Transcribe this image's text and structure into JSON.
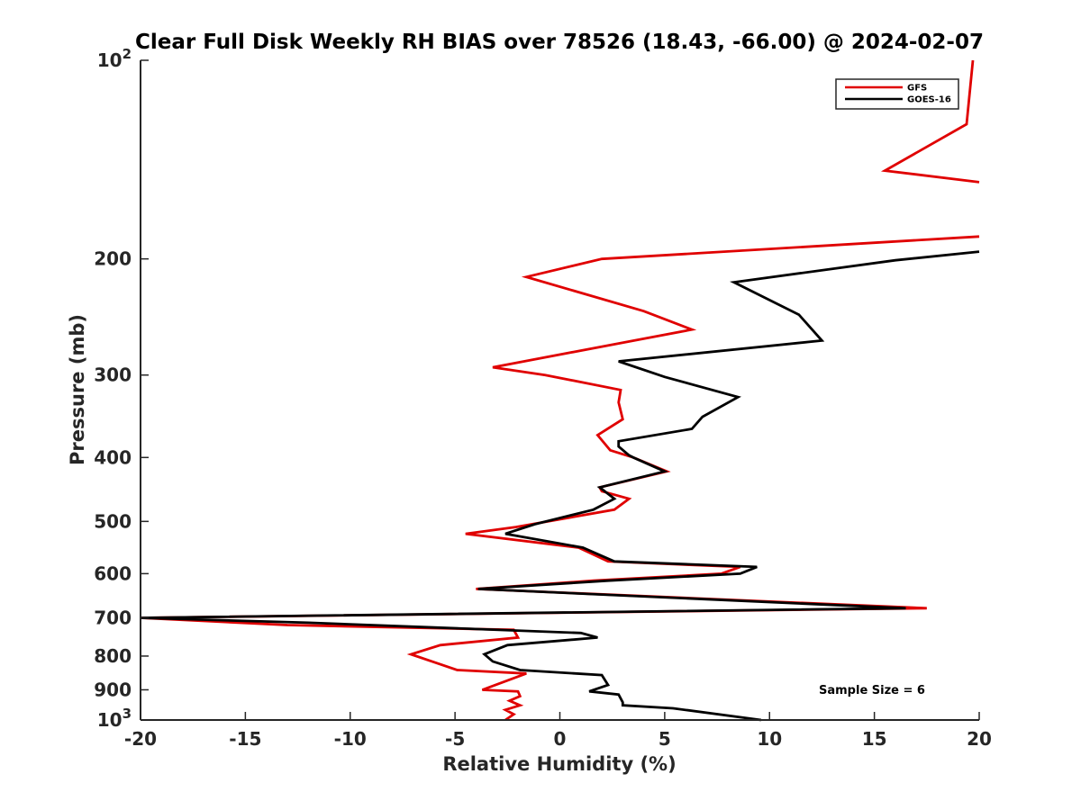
{
  "chart_data": {
    "type": "line",
    "title": "Clear Full Disk Weekly RH BIAS over 78526 (18.43, -66.00) @ 2024-02-07",
    "xlabel": "Relative Humidity (%)",
    "ylabel": "Pressure (mb)",
    "xlim": [
      -20,
      20
    ],
    "ylim": [
      100,
      1000
    ],
    "yscale": "log",
    "y_reversed": true,
    "x_ticks": [
      -20,
      -15,
      -10,
      -5,
      0,
      5,
      10,
      15,
      20
    ],
    "x_tick_labels": [
      "-20",
      "-15",
      "-10",
      "-5",
      "0",
      "5",
      "10",
      "15",
      "20"
    ],
    "y_ticks": [
      100,
      200,
      300,
      400,
      500,
      600,
      700,
      800,
      900,
      1000
    ],
    "y_tick_labels": [
      {
        "base": "10",
        "sup": "2"
      },
      {
        "base": "200",
        "sup": ""
      },
      {
        "base": "300",
        "sup": ""
      },
      {
        "base": "400",
        "sup": ""
      },
      {
        "base": "500",
        "sup": ""
      },
      {
        "base": "600",
        "sup": ""
      },
      {
        "base": "700",
        "sup": ""
      },
      {
        "base": "800",
        "sup": ""
      },
      {
        "base": "900",
        "sup": ""
      },
      {
        "base": "10",
        "sup": "3"
      }
    ],
    "legend_position": "top-right",
    "annotation": "Sample Size = 6",
    "series": [
      {
        "name": "GFS",
        "color": "#e00000",
        "points": [
          [
            19.7,
            100
          ],
          [
            19.4,
            125
          ],
          [
            15.5,
            147
          ],
          [
            20.0,
            153
          ],
          [
            null,
            null
          ],
          [
            20.0,
            185
          ],
          [
            2.0,
            200
          ],
          [
            -1.6,
            213
          ],
          [
            4.0,
            240
          ],
          [
            6.3,
            256
          ],
          [
            -3.2,
            292
          ],
          [
            -0.7,
            300
          ],
          [
            2.9,
            316
          ],
          [
            2.8,
            330
          ],
          [
            3.0,
            350
          ],
          [
            1.8,
            370
          ],
          [
            2.4,
            390
          ],
          [
            3.5,
            400
          ],
          [
            5.1,
            420
          ],
          [
            1.9,
            444
          ],
          [
            2.0,
            450
          ],
          [
            3.3,
            462
          ],
          [
            2.6,
            480
          ],
          [
            -2.1,
            510
          ],
          [
            -4.5,
            522
          ],
          [
            0.9,
            548
          ],
          [
            2.3,
            575
          ],
          [
            8.6,
            586
          ],
          [
            7.7,
            600
          ],
          [
            1.6,
            615
          ],
          [
            -4.0,
            633
          ],
          [
            17.5,
            677
          ],
          [
            -20.0,
            700
          ],
          [
            -13.0,
            718
          ],
          [
            -2.2,
            730
          ],
          [
            -2.0,
            750
          ],
          [
            -5.7,
            770
          ],
          [
            -7.1,
            795
          ],
          [
            -6.1,
            815
          ],
          [
            -4.9,
            840
          ],
          [
            -1.6,
            850
          ],
          [
            -3.7,
            900
          ],
          [
            -2.0,
            905
          ],
          [
            -1.9,
            920
          ],
          [
            -2.4,
            935
          ],
          [
            -1.9,
            950
          ],
          [
            -2.6,
            965
          ],
          [
            -2.2,
            980
          ],
          [
            -2.6,
            1000
          ]
        ]
      },
      {
        "name": "GOES-16",
        "color": "#000000",
        "points": [
          [
            20.0,
            195
          ],
          [
            16.0,
            201
          ],
          [
            8.3,
            217
          ],
          [
            11.4,
            243
          ],
          [
            12.5,
            266
          ],
          [
            2.8,
            286
          ],
          [
            5.0,
            302
          ],
          [
            8.5,
            324
          ],
          [
            6.8,
            347
          ],
          [
            6.3,
            362
          ],
          [
            2.8,
            378
          ],
          [
            2.8,
            385
          ],
          [
            3.3,
            397
          ],
          [
            3.5,
            400
          ],
          [
            5.0,
            420
          ],
          [
            1.9,
            444
          ],
          [
            2.6,
            462
          ],
          [
            1.6,
            480
          ],
          [
            -1.2,
            505
          ],
          [
            -2.6,
            522
          ],
          [
            1.1,
            548
          ],
          [
            2.6,
            575
          ],
          [
            9.4,
            586
          ],
          [
            8.6,
            600
          ],
          [
            2.3,
            615
          ],
          [
            -3.9,
            633
          ],
          [
            16.5,
            677
          ],
          [
            -20.0,
            700
          ],
          [
            -12.0,
            712
          ],
          [
            1.0,
            738
          ],
          [
            1.8,
            750
          ],
          [
            -2.5,
            770
          ],
          [
            -3.6,
            795
          ],
          [
            -3.2,
            815
          ],
          [
            -1.9,
            840
          ],
          [
            2.0,
            855
          ],
          [
            2.3,
            885
          ],
          [
            1.4,
            905
          ],
          [
            2.8,
            915
          ],
          [
            3.0,
            940
          ],
          [
            3.0,
            950
          ],
          [
            5.4,
            960
          ],
          [
            9.6,
            1000
          ]
        ]
      }
    ]
  }
}
